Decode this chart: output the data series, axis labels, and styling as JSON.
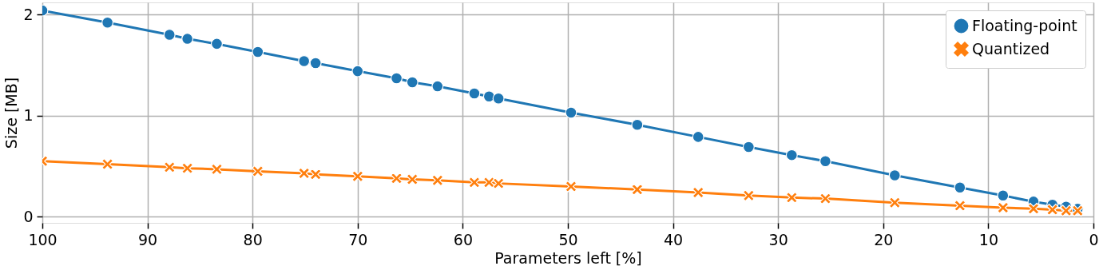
{
  "chart_data": {
    "type": "line",
    "xlabel": "Parameters left [%]",
    "ylabel": "Size [MB]",
    "x": [
      100,
      93.8,
      87.9,
      86.2,
      83.4,
      79.5,
      75.1,
      74,
      70,
      66.3,
      64.8,
      62.4,
      58.9,
      57.5,
      56.6,
      49.7,
      43.4,
      37.6,
      32.8,
      28.7,
      25.5,
      18.9,
      12.7,
      8.6,
      5.7,
      3.9,
      2.6,
      1.5
    ],
    "series": [
      {
        "name": "Floating-point",
        "color": "#1f77b4",
        "marker": "circle",
        "values": [
          2.04,
          1.92,
          1.8,
          1.76,
          1.71,
          1.63,
          1.54,
          1.52,
          1.44,
          1.37,
          1.33,
          1.29,
          1.22,
          1.19,
          1.17,
          1.03,
          0.91,
          0.79,
          0.69,
          0.61,
          0.55,
          0.41,
          0.29,
          0.21,
          0.15,
          0.12,
          0.1,
          0.08
        ]
      },
      {
        "name": "Quantized",
        "color": "#ff7f0e",
        "marker": "cross",
        "values": [
          0.55,
          0.52,
          0.49,
          0.48,
          0.47,
          0.45,
          0.43,
          0.42,
          0.4,
          0.38,
          0.37,
          0.36,
          0.34,
          0.34,
          0.33,
          0.3,
          0.27,
          0.24,
          0.21,
          0.19,
          0.18,
          0.14,
          0.11,
          0.09,
          0.08,
          0.07,
          0.06,
          0.06
        ]
      }
    ],
    "xlim": [
      100,
      0
    ],
    "xticks": [
      100,
      90,
      80,
      70,
      60,
      50,
      40,
      30,
      20,
      10,
      0
    ],
    "ylim": [
      -0.06,
      2.12
    ],
    "yticks": [
      0,
      1,
      2
    ],
    "grid": true,
    "legend": "top right",
    "line_style": "solid"
  }
}
